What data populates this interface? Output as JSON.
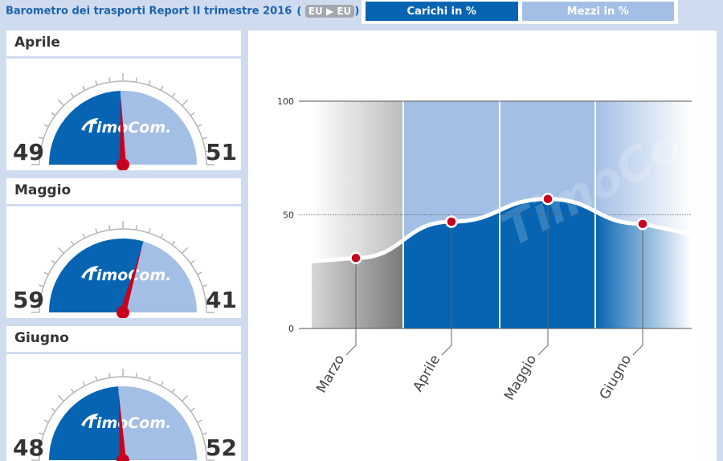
{
  "header": {
    "title": "Barometro dei trasporti Report II trimestre 2016",
    "route": {
      "from": "EU",
      "to": "EU"
    }
  },
  "toggle": {
    "active_label": "Carichi in %",
    "inactive_label": "Mezzi in %"
  },
  "brand": "TimoCom.",
  "gauges": [
    {
      "month": "Aprile",
      "left": "49",
      "right": "51",
      "fraction": 0.49
    },
    {
      "month": "Maggio",
      "left": "59",
      "right": "41",
      "fraction": 0.59
    },
    {
      "month": "Giugno",
      "left": "48",
      "right": "52",
      "fraction": 0.48
    }
  ],
  "colors": {
    "primary": "#0664b3",
    "light": "#a4bfe5",
    "needle": "#c8001e",
    "background": "#cfdcef"
  },
  "chart_data": {
    "type": "area",
    "categories": [
      "Marzo",
      "Aprile",
      "Maggio",
      "Giugno"
    ],
    "series": [
      {
        "values": [
          31,
          47,
          57,
          46
        ]
      }
    ],
    "yticks": [
      "100",
      "50",
      "0"
    ],
    "ylim": [
      0,
      100
    ]
  }
}
